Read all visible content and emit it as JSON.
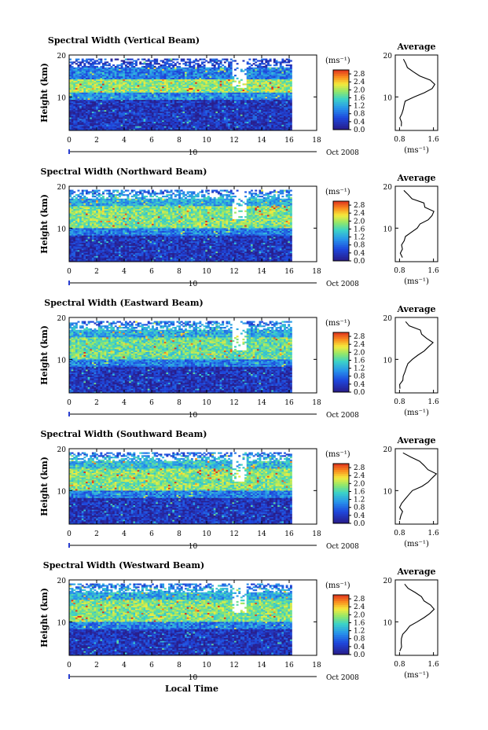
{
  "figure": {
    "date_label": "Oct 2008",
    "day_label": "10",
    "xlabel": "Local Time"
  },
  "chart_data": [
    {
      "type": "heatmap",
      "title": "Spectral Width (Vertical Beam)",
      "xlabel": "",
      "ylabel": "Height (km)",
      "x_ticks": [
        "0",
        "2",
        "4",
        "6",
        "8",
        "10",
        "12",
        "14",
        "16",
        "18"
      ],
      "xlim": [
        0,
        18
      ],
      "y_ticks": [
        "10",
        "20"
      ],
      "ylim": [
        2,
        20
      ],
      "colorbar": {
        "unit": "(ms⁻¹)",
        "ticks": [
          "0.0",
          "0.4",
          "0.8",
          "1.2",
          "1.6",
          "2.0",
          "2.4",
          "2.8"
        ],
        "range": [
          0,
          3.0
        ]
      },
      "data_x_range": [
        0,
        16.2
      ],
      "bands": [
        {
          "h": [
            2,
            9
          ],
          "v": 0.3
        },
        {
          "h": [
            9,
            11
          ],
          "v": 1.0
        },
        {
          "h": [
            11,
            14
          ],
          "v": 1.9
        },
        {
          "h": [
            14,
            17
          ],
          "v": 0.9
        },
        {
          "h": [
            17,
            19
          ],
          "v": 0.5
        }
      ],
      "average": {
        "title": "Average",
        "x_ticks": [
          "0.8",
          "1.6"
        ],
        "xlim": [
          0.7,
          1.7
        ],
        "xlabel": "(ms⁻¹)",
        "y_ticks": [
          "10",
          "20"
        ],
        "heights": [
          3,
          4,
          5,
          6,
          7,
          8,
          9,
          10,
          11,
          12,
          13,
          14,
          15,
          16,
          17,
          18,
          19
        ],
        "values": [
          0.82,
          0.85,
          0.83,
          0.88,
          0.86,
          0.9,
          0.95,
          1.15,
          1.4,
          1.55,
          1.62,
          1.5,
          1.3,
          1.1,
          1.0,
          0.95,
          0.9
        ]
      }
    },
    {
      "type": "heatmap",
      "title": "Spectral Width (Northward Beam)",
      "xlabel": "",
      "ylabel": "Height (km)",
      "x_ticks": [
        "0",
        "2",
        "4",
        "6",
        "8",
        "10",
        "12",
        "14",
        "16",
        "18"
      ],
      "xlim": [
        0,
        18
      ],
      "y_ticks": [
        "10",
        "20"
      ],
      "ylim": [
        2,
        20
      ],
      "colorbar": {
        "unit": "(ms⁻¹)",
        "ticks": [
          "0.0",
          "0.4",
          "0.8",
          "1.2",
          "1.6",
          "2.0",
          "2.4",
          "2.8"
        ],
        "range": [
          0,
          3.0
        ]
      },
      "data_x_range": [
        0,
        16.2
      ],
      "bands": [
        {
          "h": [
            2,
            8
          ],
          "v": 0.3
        },
        {
          "h": [
            8,
            10
          ],
          "v": 0.9
        },
        {
          "h": [
            10,
            15
          ],
          "v": 1.8
        },
        {
          "h": [
            15,
            18
          ],
          "v": 1.2
        },
        {
          "h": [
            18,
            19
          ],
          "v": 0.8
        }
      ],
      "average": {
        "title": "Average",
        "x_ticks": [
          "0.8",
          "1.6"
        ],
        "xlim": [
          0.7,
          1.7
        ],
        "xlabel": "(ms⁻¹)",
        "y_ticks": [
          "10",
          "20"
        ],
        "heights": [
          3,
          4,
          5,
          6,
          7,
          8,
          9,
          10,
          11,
          12,
          13,
          14,
          15,
          16,
          17,
          18,
          19
        ],
        "values": [
          0.85,
          0.8,
          0.88,
          0.84,
          0.92,
          0.95,
          1.05,
          1.2,
          1.3,
          1.45,
          1.55,
          1.62,
          1.4,
          1.35,
          1.1,
          1.0,
          0.9
        ]
      }
    },
    {
      "type": "heatmap",
      "title": "Spectral Width (Eastward Beam)",
      "xlabel": "",
      "ylabel": "Height (km)",
      "x_ticks": [
        "0",
        "2",
        "4",
        "6",
        "8",
        "10",
        "12",
        "14",
        "16",
        "18"
      ],
      "xlim": [
        0,
        18
      ],
      "y_ticks": [
        "10",
        "20"
      ],
      "ylim": [
        2,
        20
      ],
      "colorbar": {
        "unit": "(ms⁻¹)",
        "ticks": [
          "0.0",
          "0.4",
          "0.8",
          "1.2",
          "1.6",
          "2.0",
          "2.4",
          "2.8"
        ],
        "range": [
          0,
          3.0
        ]
      },
      "data_x_range": [
        0,
        16.2
      ],
      "bands": [
        {
          "h": [
            2,
            8
          ],
          "v": 0.3
        },
        {
          "h": [
            8,
            10
          ],
          "v": 0.9
        },
        {
          "h": [
            10,
            15
          ],
          "v": 1.7
        },
        {
          "h": [
            15,
            18
          ],
          "v": 1.2
        },
        {
          "h": [
            18,
            19
          ],
          "v": 0.8
        }
      ],
      "average": {
        "title": "Average",
        "x_ticks": [
          "0.8",
          "1.6"
        ],
        "xlim": [
          0.7,
          1.7
        ],
        "xlabel": "(ms⁻¹)",
        "y_ticks": [
          "10",
          "20"
        ],
        "heights": [
          3,
          4,
          5,
          6,
          7,
          8,
          9,
          10,
          11,
          12,
          13,
          14,
          15,
          16,
          17,
          18,
          19
        ],
        "values": [
          0.82,
          0.8,
          0.85,
          0.86,
          0.9,
          0.96,
          1.0,
          1.1,
          1.25,
          1.4,
          1.5,
          1.6,
          1.45,
          1.35,
          1.3,
          1.05,
          0.95
        ]
      }
    },
    {
      "type": "heatmap",
      "title": "Spectral Width (Southward Beam)",
      "xlabel": "",
      "ylabel": "Height (km)",
      "x_ticks": [
        "0",
        "2",
        "4",
        "6",
        "8",
        "10",
        "12",
        "14",
        "16",
        "18"
      ],
      "xlim": [
        0,
        18
      ],
      "y_ticks": [
        "10",
        "20"
      ],
      "ylim": [
        2,
        20
      ],
      "colorbar": {
        "unit": "(ms⁻¹)",
        "ticks": [
          "0.0",
          "0.4",
          "0.8",
          "1.2",
          "1.6",
          "2.0",
          "2.4",
          "2.8"
        ],
        "range": [
          0,
          3.0
        ]
      },
      "data_x_range": [
        0,
        16.2
      ],
      "bands": [
        {
          "h": [
            2,
            8
          ],
          "v": 0.3
        },
        {
          "h": [
            8,
            10
          ],
          "v": 0.9
        },
        {
          "h": [
            10,
            15
          ],
          "v": 1.8
        },
        {
          "h": [
            15,
            18
          ],
          "v": 1.3
        },
        {
          "h": [
            18,
            19
          ],
          "v": 0.8
        }
      ],
      "average": {
        "title": "Average",
        "x_ticks": [
          "0.8",
          "1.6"
        ],
        "xlim": [
          0.7,
          1.7
        ],
        "xlabel": "(ms⁻¹)",
        "y_ticks": [
          "10",
          "20"
        ],
        "heights": [
          3,
          4,
          5,
          6,
          7,
          8,
          9,
          10,
          11,
          12,
          13,
          14,
          15,
          16,
          17,
          18,
          19
        ],
        "values": [
          0.8,
          0.84,
          0.86,
          0.82,
          0.88,
          0.94,
          1.0,
          1.1,
          1.3,
          1.45,
          1.55,
          1.65,
          1.5,
          1.4,
          1.25,
          1.05,
          0.9
        ]
      }
    },
    {
      "type": "heatmap",
      "title": "Spectral Width (Westward Beam)",
      "xlabel": "",
      "ylabel": "Height (km)",
      "x_ticks": [
        "0",
        "2",
        "4",
        "6",
        "8",
        "10",
        "12",
        "14",
        "16",
        "18"
      ],
      "xlim": [
        0,
        18
      ],
      "y_ticks": [
        "10",
        "20"
      ],
      "ylim": [
        2,
        20
      ],
      "colorbar": {
        "unit": "(ms⁻¹)",
        "ticks": [
          "0.0",
          "0.4",
          "0.8",
          "1.2",
          "1.6",
          "2.0",
          "2.4",
          "2.8"
        ],
        "range": [
          0,
          3.0
        ]
      },
      "data_x_range": [
        0,
        16.2
      ],
      "bands": [
        {
          "h": [
            2,
            8
          ],
          "v": 0.3
        },
        {
          "h": [
            8,
            10
          ],
          "v": 0.9
        },
        {
          "h": [
            10,
            15
          ],
          "v": 1.8
        },
        {
          "h": [
            15,
            18
          ],
          "v": 1.2
        },
        {
          "h": [
            18,
            19
          ],
          "v": 0.8
        }
      ],
      "average": {
        "title": "Average",
        "x_ticks": [
          "0.8",
          "1.6"
        ],
        "xlim": [
          0.7,
          1.7
        ],
        "xlabel": "(ms⁻¹)",
        "y_ticks": [
          "10",
          "20"
        ],
        "heights": [
          3,
          4,
          5,
          6,
          7,
          8,
          9,
          10,
          11,
          12,
          13,
          14,
          15,
          16,
          17,
          18,
          19
        ],
        "values": [
          0.82,
          0.86,
          0.84,
          0.85,
          0.9,
          0.95,
          1.05,
          1.2,
          1.35,
          1.5,
          1.6,
          1.55,
          1.4,
          1.3,
          1.2,
          1.0,
          0.9
        ]
      }
    }
  ]
}
